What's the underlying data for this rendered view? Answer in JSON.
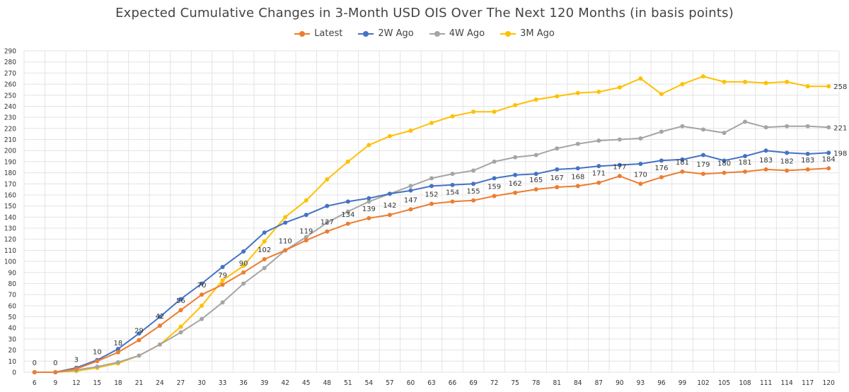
{
  "chart_data": {
    "type": "line",
    "title": "Expected Cumulative Changes in 3-Month USD OIS Over The Next 120 Months (in basis points)",
    "xlabel": "",
    "ylabel": "",
    "x": [
      6,
      9,
      12,
      15,
      18,
      21,
      24,
      27,
      30,
      33,
      36,
      39,
      42,
      45,
      48,
      51,
      54,
      57,
      60,
      63,
      66,
      69,
      72,
      75,
      78,
      81,
      84,
      87,
      90,
      93,
      96,
      99,
      102,
      105,
      108,
      111,
      114,
      117,
      120
    ],
    "ylim": [
      0,
      290
    ],
    "ytick_step": 10,
    "grid": true,
    "legend_position": "top",
    "series": [
      {
        "name": "Latest",
        "color": "#ED7D31",
        "values": [
          0,
          0,
          3,
          10,
          18,
          29,
          42,
          56,
          70,
          79,
          90,
          102,
          110,
          119,
          127,
          134,
          139,
          142,
          147,
          152,
          154,
          155,
          159,
          162,
          165,
          167,
          168,
          171,
          177,
          170,
          176,
          181,
          179,
          180,
          181,
          183,
          182,
          183,
          184
        ],
        "labels": [
          "0",
          "0",
          "3",
          "10",
          "18",
          "29",
          "42",
          "56",
          "70",
          "79",
          "90",
          "102",
          "110",
          "119",
          "127",
          "134",
          "139",
          "142",
          "147",
          "152",
          "154",
          "155",
          "159",
          "162",
          "165",
          "167",
          "168",
          "171",
          "177",
          "170",
          "176",
          "181",
          "179",
          "180",
          "181",
          "183",
          "182",
          "183",
          "184"
        ]
      },
      {
        "name": "2W Ago",
        "color": "#4472C4",
        "values": [
          0,
          0,
          4,
          11,
          21,
          35,
          50,
          66,
          80,
          95,
          109,
          126,
          135,
          142,
          150,
          154,
          157,
          161,
          164,
          168,
          169,
          170,
          175,
          178,
          179,
          183,
          184,
          186,
          187,
          188,
          191,
          192,
          196,
          191,
          195,
          200,
          198,
          197,
          198
        ],
        "labels": [
          "",
          "",
          "",
          "",
          "",
          "",
          "",
          "",
          "",
          "",
          "",
          "",
          "",
          "",
          "",
          "",
          "",
          "",
          "",
          "",
          "",
          "",
          "",
          "",
          "",
          "",
          "",
          "",
          "",
          "",
          "",
          "",
          "",
          "",
          "",
          "",
          "",
          "",
          "198"
        ]
      },
      {
        "name": "4W Ago",
        "color": "#A5A5A5",
        "values": [
          0,
          0,
          2,
          5,
          9,
          15,
          25,
          36,
          48,
          63,
          80,
          94,
          110,
          122,
          135,
          145,
          154,
          161,
          168,
          175,
          179,
          182,
          190,
          194,
          196,
          202,
          206,
          209,
          210,
          211,
          217,
          222,
          219,
          216,
          226,
          221,
          222,
          222,
          221
        ],
        "labels": [
          "",
          "",
          "",
          "",
          "",
          "",
          "",
          "",
          "",
          "",
          "",
          "",
          "",
          "",
          "",
          "",
          "",
          "",
          "",
          "",
          "",
          "",
          "",
          "",
          "",
          "",
          "",
          "",
          "",
          "",
          "",
          "",
          "",
          "",
          "",
          "",
          "",
          "",
          "221"
        ]
      },
      {
        "name": "3M Ago",
        "color": "#FFC000",
        "values": [
          0,
          0,
          1,
          4,
          8,
          15,
          25,
          41,
          60,
          83,
          96,
          118,
          140,
          155,
          174,
          190,
          205,
          213,
          218,
          225,
          231,
          235,
          235,
          241,
          246,
          249,
          252,
          253,
          257,
          265,
          251,
          260,
          267,
          262,
          262,
          261,
          262,
          258,
          258
        ],
        "labels": [
          "",
          "",
          "",
          "",
          "",
          "",
          "",
          "",
          "",
          "",
          "",
          "",
          "",
          "",
          "",
          "",
          "",
          "",
          "",
          "",
          "",
          "",
          "",
          "",
          "",
          "",
          "",
          "",
          "",
          "",
          "",
          "",
          "",
          "",
          "",
          "",
          "",
          "",
          "258"
        ]
      }
    ]
  }
}
